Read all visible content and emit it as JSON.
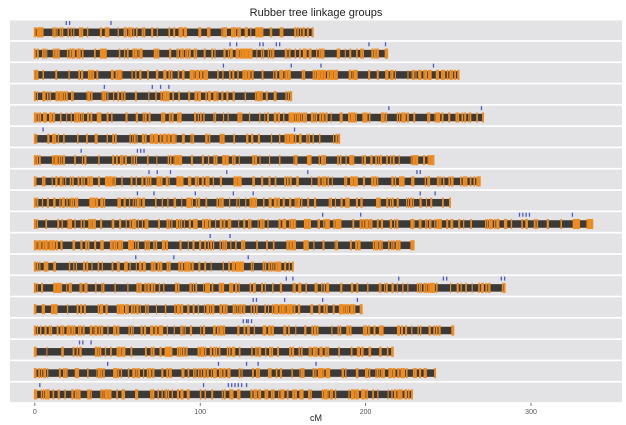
{
  "chart_data": {
    "type": "linkage-map",
    "title": "Rubber tree linkage groups",
    "xlabel": "cM",
    "ylabel": "",
    "xlim": [
      -15,
      355
    ],
    "x_ticks": [
      0,
      100,
      200,
      300
    ],
    "grid": false,
    "colors": {
      "panel_background": "#e3e3e6",
      "chromosome_bar": "#3a3a3a",
      "marker": "#f08c1e",
      "highlight": "#4b5bbf"
    },
    "series": [
      {
        "marker_seed": 11,
        "length": 168,
        "highlights": [
          19,
          21,
          46
        ]
      },
      {
        "marker_seed": 23,
        "length": 213,
        "highlights": [
          118,
          122,
          136,
          138,
          146,
          148,
          202,
          212
        ]
      },
      {
        "marker_seed": 37,
        "length": 256,
        "highlights": [
          114,
          155,
          173,
          241
        ]
      },
      {
        "marker_seed": 41,
        "length": 155,
        "highlights": [
          42,
          71,
          76,
          81
        ]
      },
      {
        "marker_seed": 53,
        "length": 271,
        "highlights": [
          214,
          270
        ]
      },
      {
        "marker_seed": 61,
        "length": 184,
        "highlights": [
          5,
          157
        ]
      },
      {
        "marker_seed": 73,
        "length": 241,
        "highlights": [
          28,
          62,
          64,
          66
        ]
      },
      {
        "marker_seed": 89,
        "length": 269,
        "highlights": [
          69,
          74,
          82,
          116,
          165,
          231,
          233
        ]
      },
      {
        "marker_seed": 97,
        "length": 251,
        "highlights": [
          62,
          72,
          97,
          120,
          132,
          233,
          242
        ]
      },
      {
        "marker_seed": 103,
        "length": 337,
        "highlights": [
          174,
          197,
          293,
          295,
          297,
          299,
          325
        ]
      },
      {
        "marker_seed": 113,
        "length": 229,
        "highlights": [
          106,
          118
        ]
      },
      {
        "marker_seed": 127,
        "length": 156,
        "highlights": [
          61,
          84,
          129
        ]
      },
      {
        "marker_seed": 139,
        "length": 284,
        "highlights": [
          152,
          156,
          220,
          247,
          249,
          282,
          284
        ]
      },
      {
        "marker_seed": 149,
        "length": 197,
        "highlights": [
          132,
          134,
          151,
          174,
          195
        ]
      },
      {
        "marker_seed": 163,
        "length": 253,
        "highlights": [
          126,
          128,
          129,
          131
        ]
      },
      {
        "marker_seed": 173,
        "length": 216,
        "highlights": [
          27,
          29,
          34
        ]
      },
      {
        "marker_seed": 181,
        "length": 242,
        "highlights": [
          44,
          111,
          128,
          135,
          170
        ]
      },
      {
        "marker_seed": 191,
        "length": 228,
        "highlights": [
          3,
          102,
          117,
          119,
          121,
          123,
          125,
          128
        ]
      }
    ]
  }
}
